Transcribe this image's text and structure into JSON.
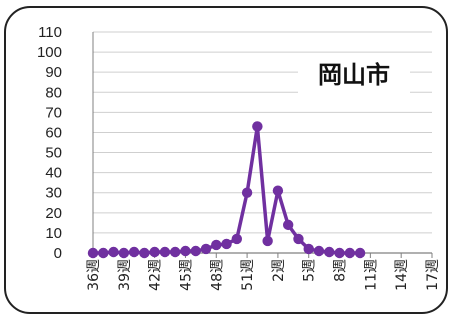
{
  "chart_data": {
    "type": "line",
    "title": "岡山市",
    "xlabel": "",
    "ylabel": "",
    "ylim": [
      0,
      110
    ],
    "y_ticks": [
      0,
      10,
      20,
      30,
      40,
      50,
      60,
      70,
      80,
      90,
      100,
      110
    ],
    "grid": true,
    "x_tick_labels": [
      "36週",
      "39週",
      "42週",
      "45週",
      "48週",
      "51週",
      "2週",
      "5週",
      "8週",
      "11週",
      "14週",
      "17週"
    ],
    "x": [
      "36週",
      "37週",
      "38週",
      "39週",
      "40週",
      "41週",
      "42週",
      "43週",
      "44週",
      "45週",
      "46週",
      "47週",
      "48週",
      "49週",
      "50週",
      "51週",
      "52週",
      "1週",
      "2週",
      "3週",
      "4週",
      "5週",
      "6週",
      "7週",
      "8週",
      "9週",
      "10週",
      "11週",
      "12週",
      "13週",
      "14週",
      "15週",
      "16週",
      "17週"
    ],
    "series": [
      {
        "values": [
          0,
          0,
          0.5,
          0,
          0.5,
          0,
          0.5,
          0.5,
          0.5,
          1,
          1,
          2,
          4,
          4.5,
          7,
          30,
          63,
          6,
          31,
          14,
          7,
          2,
          1,
          0.5,
          0,
          0,
          0,
          null,
          null,
          null,
          null,
          null,
          null,
          null
        ]
      }
    ],
    "colors": {
      "line": "#7030a0",
      "grid": "#cfcfcf",
      "axis": "#808080"
    }
  }
}
